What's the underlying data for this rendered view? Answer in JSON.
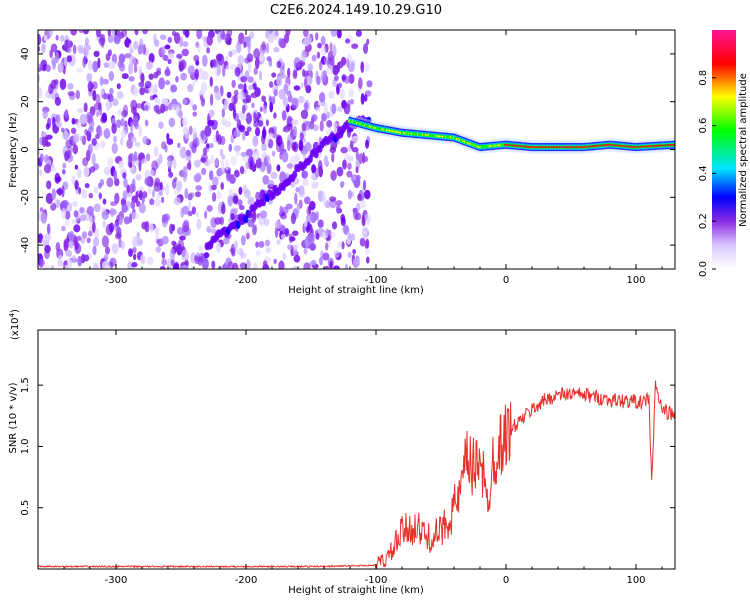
{
  "title": "C2E6.2024.149.10.29.G10",
  "chart_data": [
    {
      "type": "heatmap",
      "xlabel": "Height of straight line (km)",
      "ylabel": "Frequency (Hz)",
      "xlim": [
        -360,
        130
      ],
      "ylim": [
        -50,
        50
      ],
      "xticks": [
        -300,
        -200,
        -100,
        0,
        100
      ],
      "yticks": [
        -40,
        -20,
        0,
        20,
        40
      ],
      "noise_region_x": [
        -360,
        -105
      ],
      "sweep_track": {
        "x": [
          -230,
          -200,
          -170,
          -140,
          -120,
          -105
        ],
        "y": [
          -40,
          -28,
          -14,
          2,
          10,
          13
        ]
      },
      "signal_track": {
        "x": [
          -120,
          -100,
          -80,
          -60,
          -40,
          -20,
          0,
          20,
          40,
          60,
          80,
          100,
          130
        ],
        "y": [
          12,
          9,
          7,
          6,
          5,
          1,
          2,
          1,
          1,
          1,
          2,
          1,
          2
        ]
      },
      "colorbar": {
        "label": "Normalized spectral amplitude",
        "range": [
          0.0,
          1.0
        ],
        "ticks": [
          "0.0",
          "0.2",
          "0.4",
          "0.6",
          "0.8"
        ],
        "colors": [
          "#ffffff",
          "#d8c6ff",
          "#8a2be2",
          "#0000ff",
          "#00e5ff",
          "#00ff00",
          "#ffff00",
          "#ff0000",
          "#ff1493"
        ]
      }
    },
    {
      "type": "line",
      "xlabel": "Height of straight line (km)",
      "ylabel": "SNR (10 * v/v)",
      "scale_note": "(x10",
      "scale_exp": "4",
      "scale_close": ")",
      "xlim": [
        -360,
        130
      ],
      "ylim": [
        0,
        1.95
      ],
      "xticks": [
        -300,
        -200,
        -100,
        0,
        100
      ],
      "yticks": [
        0.5,
        1.0,
        1.5
      ],
      "ytick_labels": [
        "0.5",
        "1.0",
        "1.5"
      ],
      "series": [
        {
          "color": "#e8302a",
          "x": [
            -360,
            -250,
            -150,
            -100,
            -90,
            -80,
            -70,
            -60,
            -50,
            -40,
            -35,
            -30,
            -25,
            -20,
            -15,
            -10,
            -5,
            0,
            10,
            20,
            30,
            40,
            50,
            60,
            70,
            80,
            90,
            100,
            105,
            110,
            112,
            115,
            120,
            130
          ],
          "y": [
            0.02,
            0.02,
            0.02,
            0.03,
            0.1,
            0.3,
            0.35,
            0.25,
            0.3,
            0.5,
            0.6,
            0.9,
            0.8,
            1.0,
            0.5,
            0.9,
            1.0,
            1.1,
            1.2,
            1.3,
            1.38,
            1.42,
            1.43,
            1.42,
            1.4,
            1.38,
            1.37,
            1.37,
            1.35,
            1.4,
            0.7,
            1.5,
            1.3,
            1.25
          ]
        }
      ]
    }
  ]
}
